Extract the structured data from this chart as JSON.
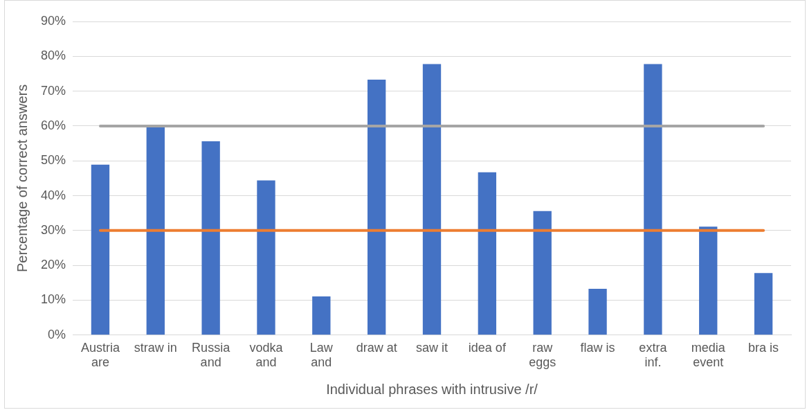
{
  "chart_data": {
    "type": "bar",
    "xlabel": "Individual phrases with intrusive /r/",
    "ylabel": "Percentage of correct answers",
    "categories": [
      "Austria are",
      "straw in",
      "Russia and",
      "vodka and",
      "Law and",
      "draw at",
      "saw it",
      "idea of",
      "raw eggs",
      "flaw is",
      "extra inf.",
      "media event",
      "bra is"
    ],
    "values": [
      48.9,
      60,
      55.6,
      44.4,
      11.1,
      73.3,
      77.8,
      46.7,
      35.6,
      13.3,
      77.8,
      31.1,
      17.8
    ],
    "color": "#4472c4",
    "ylim": [
      0,
      90
    ],
    "yticks": [
      {
        "value": 0,
        "label": "0%"
      },
      {
        "value": 10,
        "label": "10%"
      },
      {
        "value": 20,
        "label": "20%"
      },
      {
        "value": 30,
        "label": "30%"
      },
      {
        "value": 40,
        "label": "40%"
      },
      {
        "value": 50,
        "label": "50%"
      },
      {
        "value": 60,
        "label": "60%"
      },
      {
        "value": 70,
        "label": "70%"
      },
      {
        "value": 80,
        "label": "80%"
      },
      {
        "value": 90,
        "label": "90%"
      }
    ],
    "grid": "y",
    "ref_lines": [
      {
        "axis": "y",
        "value": 60,
        "color": "#a5a5a5"
      },
      {
        "axis": "y",
        "value": 30,
        "color": "#ed7d31"
      }
    ]
  }
}
